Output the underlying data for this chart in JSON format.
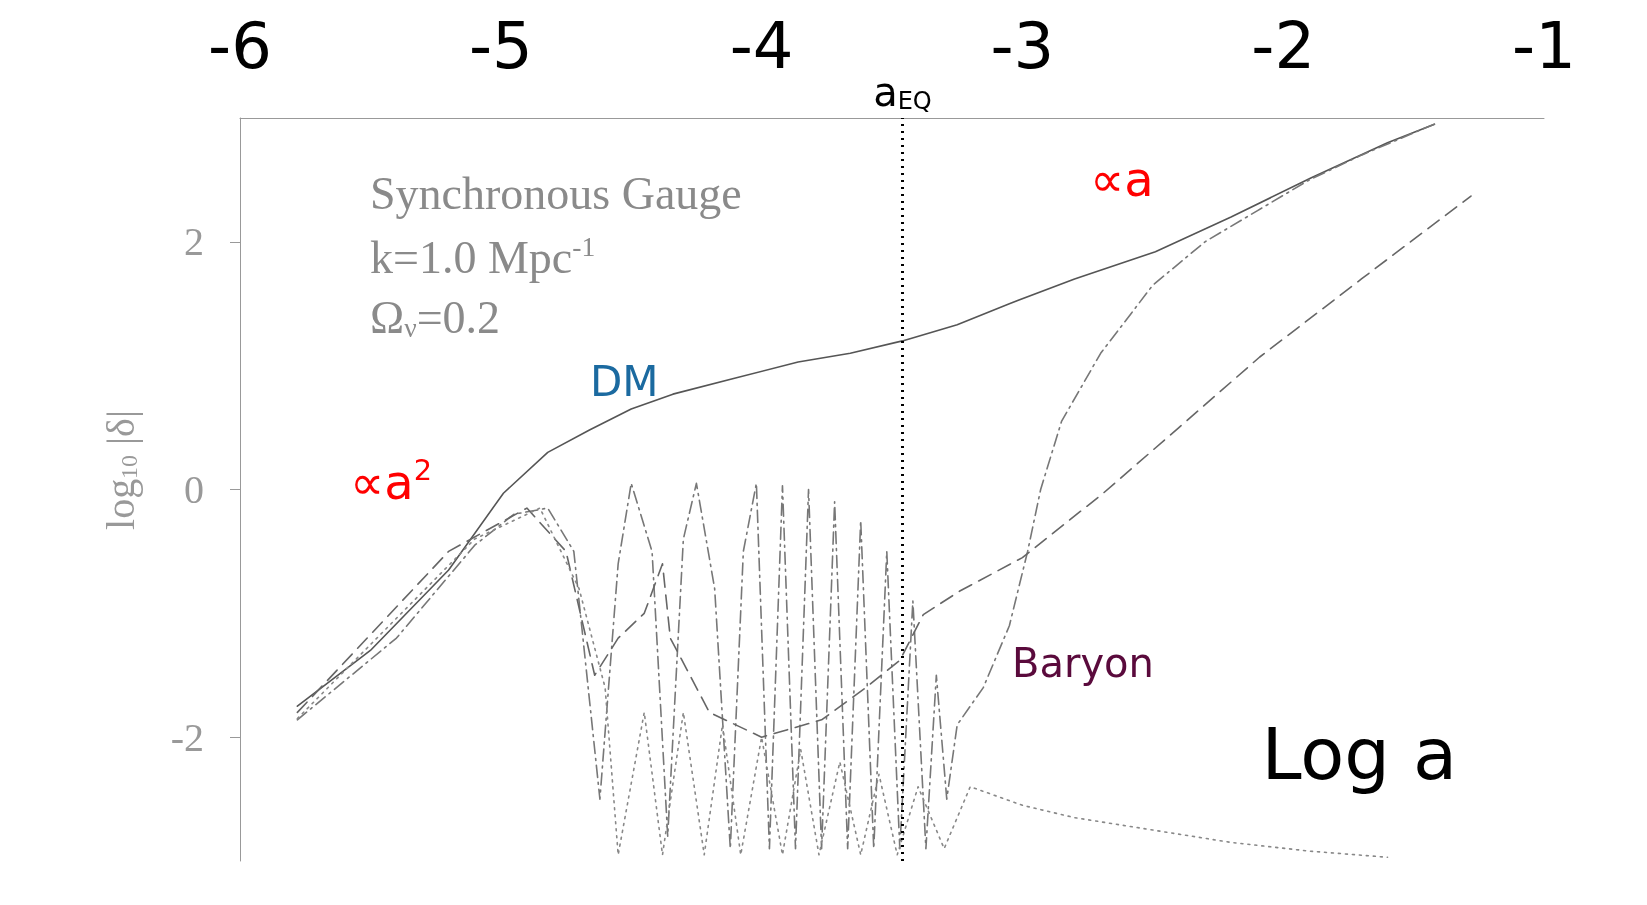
{
  "chart_data": {
    "type": "line",
    "xlabel": "Log a",
    "ylabel": "log$_{10}$ |δ|",
    "xlim": [
      -6,
      -1
    ],
    "xticks": [
      -6,
      -5,
      -4,
      -3,
      -2,
      -1
    ],
    "ylim": [
      -3,
      3
    ],
    "yticks": [
      -2,
      0,
      2
    ],
    "grid": false,
    "marker": "none",
    "series": [
      {
        "color": "#555555",
        "line_style": "solid",
        "x": [
          -5.78,
          -5.5,
          -5.2,
          -4.99,
          -4.82,
          -4.66,
          -4.5,
          -4.34,
          -4.1,
          -3.86,
          -3.66,
          -3.46,
          -3.25,
          -3.05,
          -2.8,
          -2.49,
          -2.2,
          -1.89,
          -1.6,
          -1.42
        ],
        "values": [
          -1.75,
          -1.3,
          -0.65,
          -0.03,
          0.3,
          0.48,
          0.65,
          0.77,
          0.9,
          1.03,
          1.1,
          1.2,
          1.33,
          1.5,
          1.7,
          1.92,
          2.2,
          2.52,
          2.8,
          2.95
        ]
      },
      {
        "color": "#777777",
        "line_style": "dashdot",
        "x": [
          -5.78,
          -5.4,
          -5.1,
          -4.95,
          -4.82,
          -4.72,
          -4.62,
          -4.55,
          -4.5,
          -4.42,
          -4.36,
          -4.3,
          -4.25,
          -4.18,
          -4.12,
          -4.07,
          -4.02,
          -3.97,
          -3.92,
          -3.87,
          -3.82,
          -3.77,
          -3.72,
          -3.67,
          -3.62,
          -3.57,
          -3.52,
          -3.47,
          -3.42,
          -3.37,
          -3.33,
          -3.29,
          -3.25,
          -3.15,
          -3.05,
          -2.98,
          -2.93,
          -2.85,
          -2.7,
          -2.5,
          -2.3,
          -2.1,
          -1.9,
          -1.7,
          -1.5,
          -1.42
        ],
        "values": [
          -1.86,
          -1.2,
          -0.45,
          -0.2,
          -0.15,
          -0.5,
          -2.5,
          -0.6,
          0.05,
          -0.5,
          -2.8,
          -0.4,
          0.05,
          -0.8,
          -2.9,
          -0.5,
          0.05,
          -2.9,
          0.03,
          -2.9,
          0.0,
          -2.9,
          -0.1,
          -2.9,
          -0.25,
          -2.9,
          -0.5,
          -2.9,
          -0.9,
          -2.9,
          -1.5,
          -2.5,
          -1.9,
          -1.6,
          -1.1,
          -0.5,
          0.0,
          0.55,
          1.1,
          1.65,
          2.0,
          2.25,
          2.5,
          2.7,
          2.88,
          2.95
        ]
      },
      {
        "color": "#666666",
        "line_style": "dashed",
        "x": [
          -5.78,
          -5.2,
          -4.9,
          -4.75,
          -4.64,
          -4.55,
          -4.45,
          -4.38,
          -4.35,
          -4.2,
          -4.0,
          -3.77,
          -3.6,
          -3.47,
          -3.38,
          -3.24,
          -3.0,
          -2.69,
          -2.4,
          -2.09,
          -1.7,
          -1.28
        ],
        "values": [
          -1.8,
          -0.5,
          -0.15,
          -0.5,
          -1.5,
          -1.2,
          -1.0,
          -0.6,
          -1.2,
          -1.8,
          -2.0,
          -1.86,
          -1.6,
          -1.38,
          -1.01,
          -0.82,
          -0.55,
          -0.03,
          0.5,
          1.07,
          1.7,
          2.37
        ]
      },
      {
        "color": "#888888",
        "line_style": "dotted",
        "x": [
          -5.78,
          -5.1,
          -4.85,
          -4.7,
          -4.6,
          -4.55,
          -4.45,
          -4.38,
          -4.3,
          -4.22,
          -4.15,
          -4.08,
          -4.0,
          -3.92,
          -3.85,
          -3.78,
          -3.7,
          -3.62,
          -3.55,
          -3.48,
          -3.4,
          -3.3,
          -3.2,
          -3.0,
          -2.8,
          -2.5,
          -2.2,
          -1.9,
          -1.6
        ],
        "values": [
          -1.85,
          -0.4,
          -0.15,
          -0.8,
          -1.6,
          -2.95,
          -1.8,
          -2.95,
          -1.8,
          -2.95,
          -1.9,
          -2.95,
          -2.0,
          -2.95,
          -2.1,
          -2.95,
          -2.2,
          -2.95,
          -2.3,
          -2.95,
          -2.4,
          -2.9,
          -2.4,
          -2.55,
          -2.65,
          -2.75,
          -2.85,
          -2.92,
          -2.97
        ]
      }
    ],
    "ref_lines": [
      {
        "axis": "x",
        "value": -3.46,
        "label": "a$_{EQ}$",
        "color": "#000000",
        "line_style": "dotted"
      }
    ],
    "annotations": [
      "Synchronous Gauge",
      "k=1.0 Mpc$^{-1}$",
      "Ω$_{ν}$=0.2",
      "DM",
      "∝a$^{2}$",
      "∝a",
      "Baryon"
    ]
  }
}
